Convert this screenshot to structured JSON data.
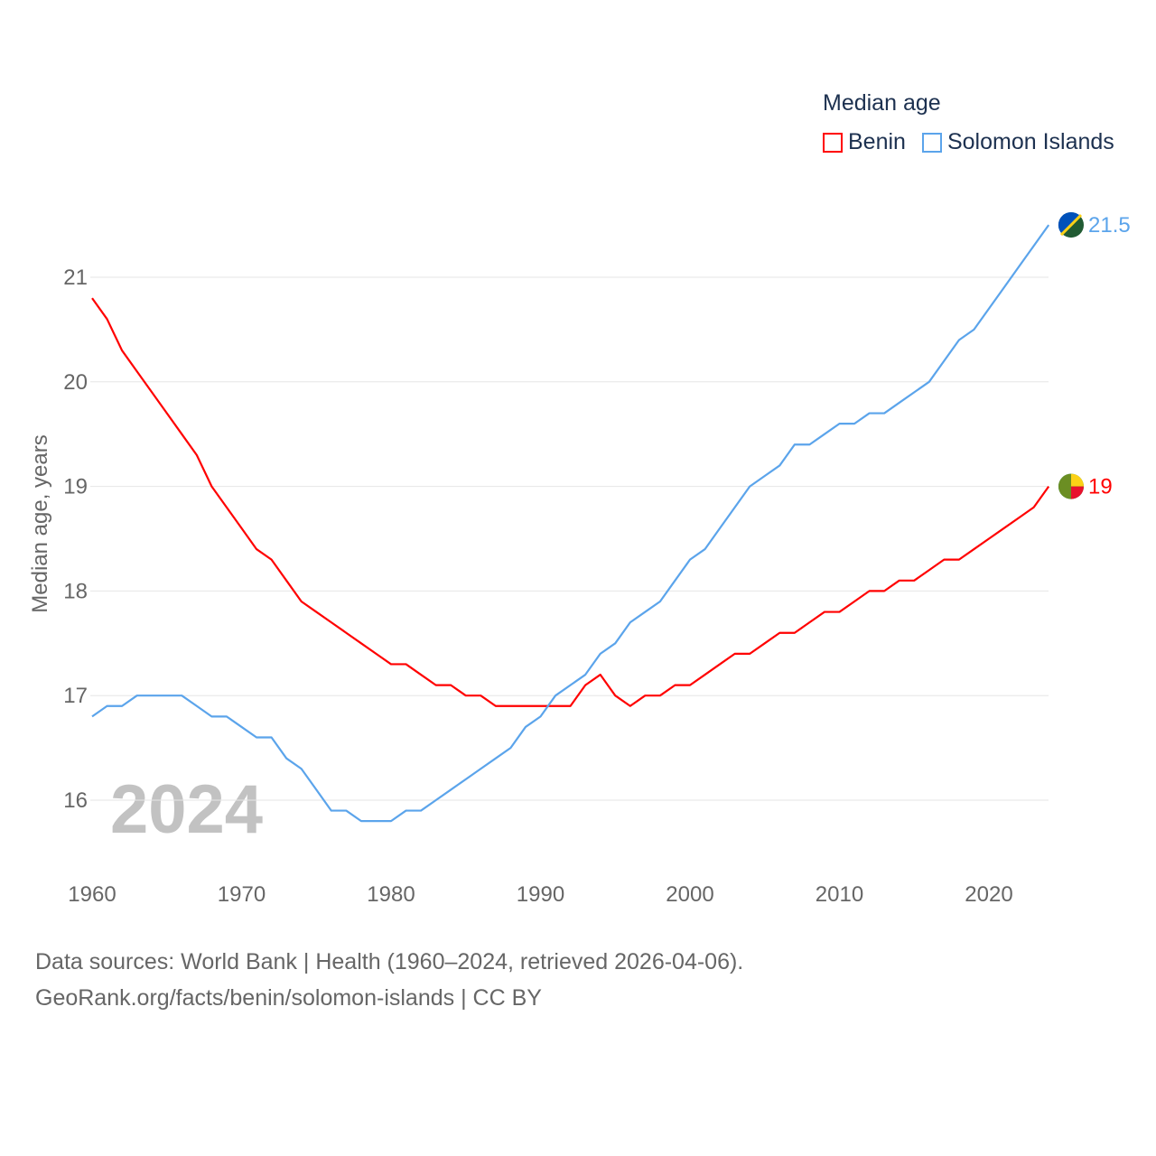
{
  "chart_data": {
    "type": "line",
    "title": "Median age",
    "ylabel": "Median age, years",
    "xlabel": "",
    "xlim": [
      1960,
      2024
    ],
    "ylim": [
      15.4,
      21.6
    ],
    "x_ticks": [
      1960,
      1970,
      1980,
      1990,
      2000,
      2010,
      2020
    ],
    "y_ticks": [
      16,
      17,
      18,
      19,
      20,
      21
    ],
    "grid": true,
    "legend_position": "top-right",
    "year_label": "2024",
    "x": [
      1960,
      1961,
      1962,
      1963,
      1964,
      1965,
      1966,
      1967,
      1968,
      1969,
      1970,
      1971,
      1972,
      1973,
      1974,
      1975,
      1976,
      1977,
      1978,
      1979,
      1980,
      1981,
      1982,
      1983,
      1984,
      1985,
      1986,
      1987,
      1988,
      1989,
      1990,
      1991,
      1992,
      1993,
      1994,
      1995,
      1996,
      1997,
      1998,
      1999,
      2000,
      2001,
      2002,
      2003,
      2004,
      2005,
      2006,
      2007,
      2008,
      2009,
      2010,
      2011,
      2012,
      2013,
      2014,
      2015,
      2016,
      2017,
      2018,
      2019,
      2020,
      2021,
      2022,
      2023,
      2024
    ],
    "series": [
      {
        "name": "Benin",
        "color": "#ff0000",
        "end_label": "19",
        "values": [
          20.8,
          20.6,
          20.3,
          20.1,
          19.9,
          19.7,
          19.5,
          19.3,
          19.0,
          18.8,
          18.6,
          18.4,
          18.3,
          18.1,
          17.9,
          17.8,
          17.7,
          17.6,
          17.5,
          17.4,
          17.3,
          17.3,
          17.2,
          17.1,
          17.1,
          17.0,
          17.0,
          16.9,
          16.9,
          16.9,
          16.9,
          16.9,
          16.9,
          17.1,
          17.2,
          17.0,
          16.9,
          17.0,
          17.0,
          17.1,
          17.1,
          17.2,
          17.3,
          17.4,
          17.4,
          17.5,
          17.6,
          17.6,
          17.7,
          17.8,
          17.8,
          17.9,
          18.0,
          18.0,
          18.1,
          18.1,
          18.2,
          18.3,
          18.3,
          18.4,
          18.5,
          18.6,
          18.7,
          18.8,
          19.0
        ]
      },
      {
        "name": "Solomon Islands",
        "color": "#5ba4eb",
        "end_label": "21.5",
        "values": [
          16.8,
          16.9,
          16.9,
          17.0,
          17.0,
          17.0,
          17.0,
          16.9,
          16.8,
          16.8,
          16.7,
          16.6,
          16.6,
          16.4,
          16.3,
          16.1,
          15.9,
          15.9,
          15.8,
          15.8,
          15.8,
          15.9,
          15.9,
          16.0,
          16.1,
          16.2,
          16.3,
          16.4,
          16.5,
          16.7,
          16.8,
          17.0,
          17.1,
          17.2,
          17.4,
          17.5,
          17.7,
          17.8,
          17.9,
          18.1,
          18.3,
          18.4,
          18.6,
          18.8,
          19.0,
          19.1,
          19.2,
          19.4,
          19.4,
          19.5,
          19.6,
          19.6,
          19.7,
          19.7,
          19.8,
          19.9,
          20.0,
          20.2,
          20.4,
          20.5,
          20.7,
          20.9,
          21.1,
          21.3,
          21.5
        ]
      }
    ]
  },
  "footer": {
    "line1": "Data sources: World Bank | Health (1960–2024, retrieved 2026-04-06).",
    "line2": "GeoRank.org/facts/benin/solomon-islands | CC BY"
  }
}
